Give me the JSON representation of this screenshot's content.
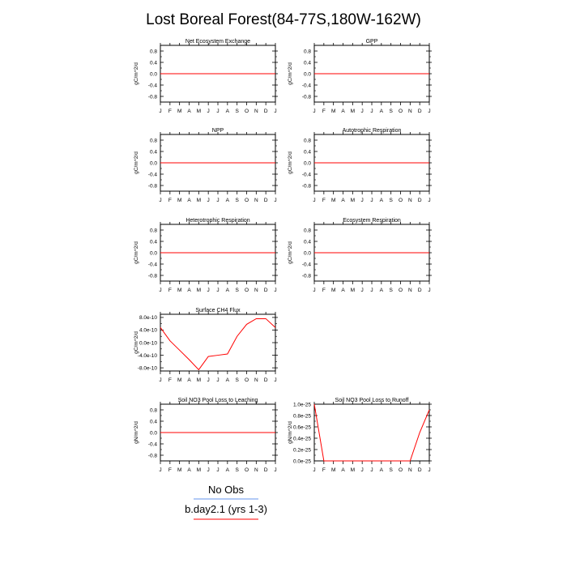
{
  "figure_title": "Lost Boreal Forest(84-77S,180W-162W)",
  "legend": [
    {
      "label": "No Obs",
      "color": "#6495ed"
    },
    {
      "label": "b.day2.1 (yrs 1-3)",
      "color": "#ff0000"
    }
  ],
  "chart_data": [
    {
      "type": "line",
      "title": "Net Ecosystem Exchange",
      "ylabel": "gC/m^2/d",
      "x": [
        "J",
        "F",
        "M",
        "A",
        "M",
        "J",
        "J",
        "A",
        "S",
        "O",
        "N",
        "D",
        "J"
      ],
      "yticks": [
        "0.8",
        "0.4",
        "0.0",
        "-0.4",
        "-0.8"
      ],
      "ytick_values": [
        0.8,
        0.4,
        0.0,
        -0.4,
        -0.8
      ],
      "ylim": [
        -1.0,
        1.0
      ],
      "series": [
        {
          "color": "#ff0000",
          "values": [
            0,
            0,
            0,
            0,
            0,
            0,
            0,
            0,
            0,
            0,
            0,
            0,
            0
          ]
        }
      ]
    },
    {
      "type": "line",
      "title": "GPP",
      "ylabel": "gC/m^2/d",
      "x": [
        "J",
        "F",
        "M",
        "A",
        "M",
        "J",
        "J",
        "A",
        "S",
        "O",
        "N",
        "D",
        "J"
      ],
      "yticks": [
        "0.8",
        "0.4",
        "0.0",
        "-0.4",
        "-0.8"
      ],
      "ytick_values": [
        0.8,
        0.4,
        0.0,
        -0.4,
        -0.8
      ],
      "ylim": [
        -1.0,
        1.0
      ],
      "series": [
        {
          "color": "#ff0000",
          "values": [
            0,
            0,
            0,
            0,
            0,
            0,
            0,
            0,
            0,
            0,
            0,
            0,
            0
          ]
        }
      ]
    },
    {
      "type": "line",
      "title": "NPP",
      "ylabel": "gC/m^2/d",
      "x": [
        "J",
        "F",
        "M",
        "A",
        "M",
        "J",
        "J",
        "A",
        "S",
        "O",
        "N",
        "D",
        "J"
      ],
      "yticks": [
        "0.8",
        "0.4",
        "0.0",
        "-0.4",
        "-0.8"
      ],
      "ytick_values": [
        0.8,
        0.4,
        0.0,
        -0.4,
        -0.8
      ],
      "ylim": [
        -1.0,
        1.0
      ],
      "series": [
        {
          "color": "#ff0000",
          "values": [
            0,
            0,
            0,
            0,
            0,
            0,
            0,
            0,
            0,
            0,
            0,
            0,
            0
          ]
        }
      ]
    },
    {
      "type": "line",
      "title": "Autotrophic Respiration",
      "ylabel": "gC/m^2/d",
      "x": [
        "J",
        "F",
        "M",
        "A",
        "M",
        "J",
        "J",
        "A",
        "S",
        "O",
        "N",
        "D",
        "J"
      ],
      "yticks": [
        "0.8",
        "0.4",
        "0.0",
        "-0.4",
        "-0.8"
      ],
      "ytick_values": [
        0.8,
        0.4,
        0.0,
        -0.4,
        -0.8
      ],
      "ylim": [
        -1.0,
        1.0
      ],
      "series": [
        {
          "color": "#ff0000",
          "values": [
            0,
            0,
            0,
            0,
            0,
            0,
            0,
            0,
            0,
            0,
            0,
            0,
            0
          ]
        }
      ]
    },
    {
      "type": "line",
      "title": "Heterotrophic Respiration",
      "ylabel": "gC/m^2/d",
      "x": [
        "J",
        "F",
        "M",
        "A",
        "M",
        "J",
        "J",
        "A",
        "S",
        "O",
        "N",
        "D",
        "J"
      ],
      "yticks": [
        "0.8",
        "0.4",
        "0.0",
        "-0.4",
        "-0.8"
      ],
      "ytick_values": [
        0.8,
        0.4,
        0.0,
        -0.4,
        -0.8
      ],
      "ylim": [
        -1.0,
        1.0
      ],
      "series": [
        {
          "color": "#ff0000",
          "values": [
            0,
            0,
            0,
            0,
            0,
            0,
            0,
            0,
            0,
            0,
            0,
            0,
            0
          ]
        }
      ]
    },
    {
      "type": "line",
      "title": "Ecosystem Respiration",
      "ylabel": "gC/m^2/d",
      "x": [
        "J",
        "F",
        "M",
        "A",
        "M",
        "J",
        "J",
        "A",
        "S",
        "O",
        "N",
        "D",
        "J"
      ],
      "yticks": [
        "0.8",
        "0.4",
        "0.0",
        "-0.4",
        "-0.8"
      ],
      "ytick_values": [
        0.8,
        0.4,
        0.0,
        -0.4,
        -0.8
      ],
      "ylim": [
        -1.0,
        1.0
      ],
      "series": [
        {
          "color": "#ff0000",
          "values": [
            0,
            0,
            0,
            0,
            0,
            0,
            0,
            0,
            0,
            0,
            0,
            0,
            0
          ]
        }
      ]
    },
    {
      "type": "line",
      "title": "Surface CH4 Flux",
      "ylabel": "gC/m^2/d",
      "x": [
        "J",
        "F",
        "M",
        "A",
        "M",
        "J",
        "J",
        "A",
        "S",
        "O",
        "N",
        "D",
        "J"
      ],
      "yticks": [
        "8.0e-10",
        "4.0e-10",
        "0.0e-10",
        "-4.0e-10",
        "-8.0e-10"
      ],
      "ytick_values": [
        8e-10,
        4e-10,
        0,
        -4e-10,
        -8e-10
      ],
      "ylim": [
        -9e-10,
        9e-10
      ],
      "series": [
        {
          "color": "#ff0000",
          "values": [
            4.8e-10,
            6e-11,
            -2.4e-10,
            -5.4e-10,
            -8.6e-10,
            -4.4e-10,
            -4e-10,
            -3.6e-10,
            2e-10,
            5.8e-10,
            7.6e-10,
            7.6e-10,
            4.8e-10
          ]
        }
      ]
    },
    {
      "type": "line",
      "title": "Soil NO3 Pool Loss to Leaching",
      "ylabel": "gN/m^2/d",
      "x": [
        "J",
        "F",
        "M",
        "A",
        "M",
        "J",
        "J",
        "A",
        "S",
        "O",
        "N",
        "D",
        "J"
      ],
      "yticks": [
        "0.8",
        "0.4",
        "0.0",
        "-0.4",
        "-0.8"
      ],
      "ytick_values": [
        0.8,
        0.4,
        0.0,
        -0.4,
        -0.8
      ],
      "ylim": [
        -1.0,
        1.0
      ],
      "series": [
        {
          "color": "#ff0000",
          "values": [
            0,
            0,
            0,
            0,
            0,
            0,
            0,
            0,
            0,
            0,
            0,
            0,
            0
          ]
        }
      ]
    },
    {
      "type": "line",
      "title": "Soil NO3 Pool Loss to Runoff",
      "ylabel": "gN/m^2/d",
      "x": [
        "J",
        "F",
        "M",
        "A",
        "M",
        "J",
        "J",
        "A",
        "S",
        "O",
        "N",
        "D",
        "J"
      ],
      "yticks": [
        "1.0e-25",
        "0.8e-25",
        "0.6e-25",
        "0.4e-25",
        "0.2e-25",
        "0.0e-25"
      ],
      "ytick_values": [
        1e-25,
        8e-26,
        6e-26,
        4e-26,
        2e-26,
        0.0
      ],
      "ylim": [
        0.0,
        1e-25
      ],
      "series": [
        {
          "color": "#ff0000",
          "values": [
            1e-25,
            0,
            0,
            0,
            0,
            0,
            0,
            0,
            0,
            0,
            0,
            5e-26,
            9e-26
          ]
        }
      ]
    }
  ]
}
